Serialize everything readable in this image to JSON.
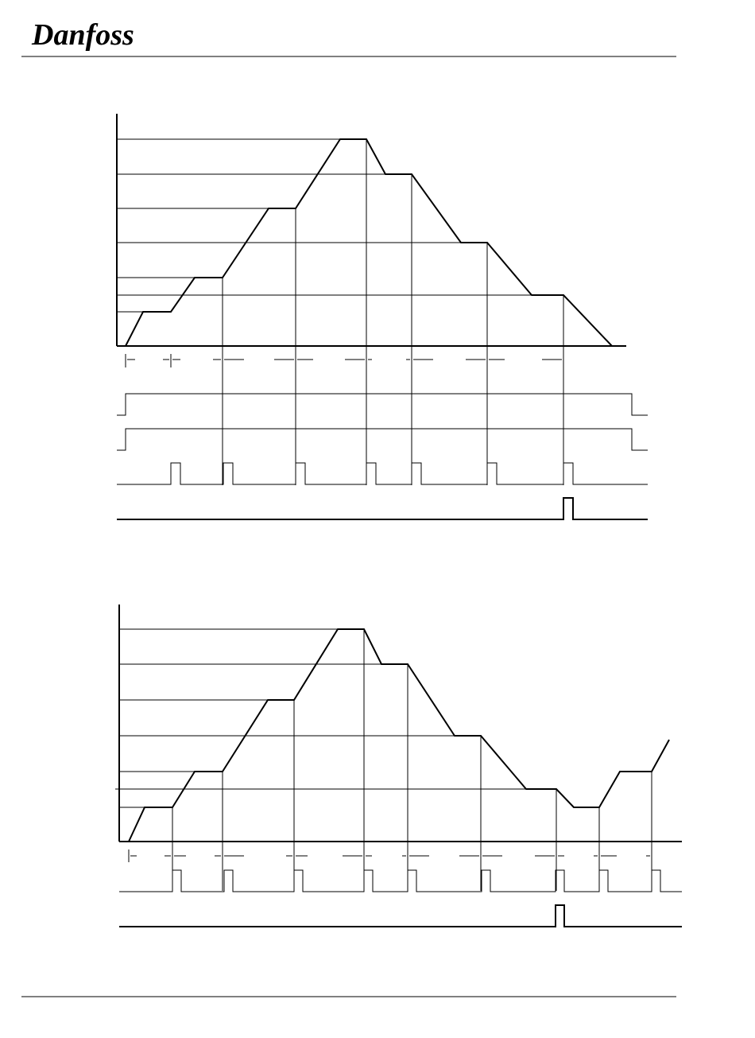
{
  "header": {
    "logo": "Danfoss"
  }
}
